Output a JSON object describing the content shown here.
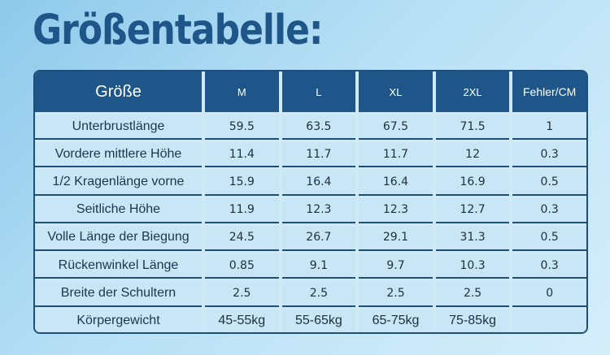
{
  "title": "Größentabelle:",
  "table": {
    "headers": [
      "Größe",
      "M",
      "L",
      "XL",
      "2XL",
      "Fehler/CM"
    ],
    "rows": [
      [
        "Unterbrustlänge",
        "59.5",
        "63.5",
        "67.5",
        "71.5",
        "1"
      ],
      [
        "Vordere mittlere Höhe",
        "11.4",
        "11.7",
        "11.7",
        "12",
        "0.3"
      ],
      [
        "1/2 Kragenlänge vorne",
        "15.9",
        "16.4",
        "16.4",
        "16.9",
        "0.5"
      ],
      [
        "Seitliche Höhe",
        "11.9",
        "12.3",
        "12.3",
        "12.7",
        "0.3"
      ],
      [
        "Volle Länge der Biegung",
        "24.5",
        "26.7",
        "29.1",
        "31.3",
        "0.5"
      ],
      [
        "Rückenwinkel Länge",
        "0.85",
        "9.1",
        "9.7",
        "10.3",
        "0.3"
      ],
      [
        "Breite der Schultern",
        "2.5",
        "2.5",
        "2.5",
        "2.5",
        "0"
      ],
      [
        "Körpergewicht",
        "45-55kg",
        "55-65kg",
        "65-75kg",
        "75-85kg",
        ""
      ]
    ]
  },
  "colors": {
    "header_bg": "#1e5689",
    "title": "#1e5689",
    "cell_bg": "#c9e6f6"
  }
}
